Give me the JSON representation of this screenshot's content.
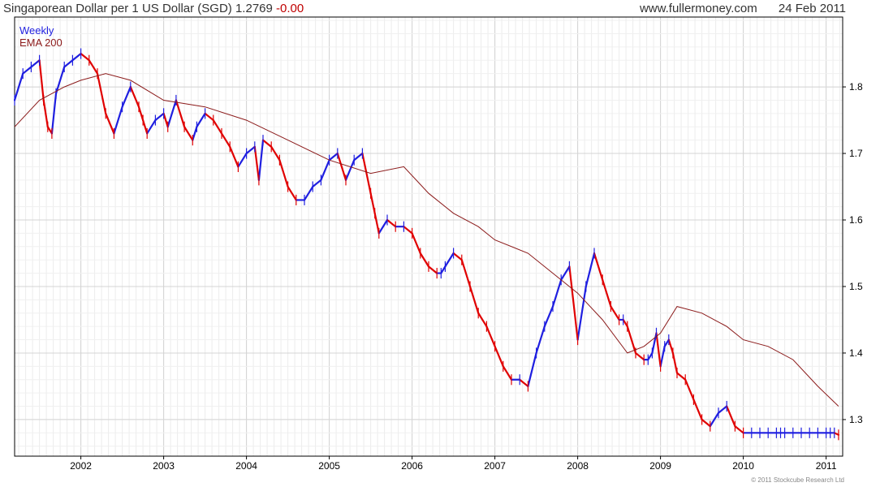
{
  "header": {
    "title": "Singaporean Dollar per 1 US Dollar (SGD)",
    "last": "1.2769",
    "change": "-0.00",
    "site": "www.fullermoney.com",
    "date": "24 Feb 2011"
  },
  "footer": {
    "copyright": "© 2011 Stockcube Research Ltd"
  },
  "colors": {
    "up": "#1f1fe0",
    "down": "#e00000",
    "ema": "#8b1a1a",
    "grid": "#d4d4d4",
    "axis": "#000000"
  },
  "chart_data": {
    "type": "line",
    "title": "Singaporean Dollar per 1 US Dollar (SGD) 1.2769 -0.00",
    "xlabel": "",
    "ylabel": "",
    "xlim": [
      2001.2,
      2011.2
    ],
    "ylim": [
      1.245,
      1.905
    ],
    "x_ticks": [
      "2002",
      "2003",
      "2004",
      "2005",
      "2006",
      "2007",
      "2008",
      "2009",
      "2010",
      "2011"
    ],
    "y_ticks": [
      1.3,
      1.4,
      1.5,
      1.6,
      1.7,
      1.8
    ],
    "grid": true,
    "legend": {
      "placement": "top-left",
      "entries": [
        "Weekly",
        "EMA 200"
      ]
    },
    "series": [
      {
        "name": "Weekly",
        "style": "bars",
        "x": [
          2001.2,
          2001.3,
          2001.4,
          2001.5,
          2001.55,
          2001.6,
          2001.65,
          2001.7,
          2001.8,
          2001.9,
          2002.0,
          2002.1,
          2002.2,
          2002.3,
          2002.4,
          2002.5,
          2002.6,
          2002.7,
          2002.75,
          2002.8,
          2002.9,
          2003.0,
          2003.05,
          2003.15,
          2003.25,
          2003.35,
          2003.4,
          2003.5,
          2003.6,
          2003.7,
          2003.8,
          2003.9,
          2004.0,
          2004.1,
          2004.15,
          2004.2,
          2004.3,
          2004.4,
          2004.5,
          2004.6,
          2004.7,
          2004.8,
          2004.9,
          2005.0,
          2005.1,
          2005.2,
          2005.3,
          2005.4,
          2005.5,
          2005.55,
          2005.6,
          2005.7,
          2005.8,
          2005.9,
          2006.0,
          2006.1,
          2006.2,
          2006.3,
          2006.35,
          2006.4,
          2006.5,
          2006.6,
          2006.7,
          2006.8,
          2006.9,
          2007.0,
          2007.1,
          2007.2,
          2007.3,
          2007.4,
          2007.5,
          2007.6,
          2007.7,
          2007.8,
          2007.9,
          2008.0,
          2008.1,
          2008.2,
          2008.3,
          2008.4,
          2008.5,
          2008.55,
          2008.6,
          2008.7,
          2008.8,
          2008.85,
          2008.9,
          2008.95,
          2009.0,
          2009.05,
          2009.1,
          2009.15,
          2009.2,
          2009.3,
          2009.4,
          2009.5,
          2009.6,
          2009.7,
          2009.8,
          2009.9,
          2010.0,
          2010.1,
          2010.2,
          2010.3,
          2010.4,
          2010.45,
          2010.5,
          2010.6,
          2010.7,
          2010.8,
          2010.9,
          2011.0,
          2011.05,
          2011.1,
          2011.15
        ],
        "values": [
          1.78,
          1.82,
          1.83,
          1.84,
          1.78,
          1.74,
          1.73,
          1.79,
          1.83,
          1.84,
          1.85,
          1.84,
          1.82,
          1.76,
          1.73,
          1.77,
          1.8,
          1.77,
          1.75,
          1.73,
          1.75,
          1.76,
          1.74,
          1.78,
          1.74,
          1.72,
          1.74,
          1.76,
          1.75,
          1.73,
          1.71,
          1.68,
          1.7,
          1.71,
          1.66,
          1.72,
          1.71,
          1.69,
          1.65,
          1.63,
          1.63,
          1.65,
          1.66,
          1.69,
          1.7,
          1.66,
          1.69,
          1.7,
          1.64,
          1.61,
          1.58,
          1.6,
          1.59,
          1.59,
          1.58,
          1.55,
          1.53,
          1.52,
          1.52,
          1.53,
          1.55,
          1.54,
          1.5,
          1.46,
          1.44,
          1.41,
          1.38,
          1.36,
          1.36,
          1.35,
          1.4,
          1.44,
          1.47,
          1.51,
          1.53,
          1.42,
          1.5,
          1.55,
          1.51,
          1.47,
          1.45,
          1.45,
          1.44,
          1.4,
          1.39,
          1.39,
          1.4,
          1.43,
          1.38,
          1.41,
          1.42,
          1.4,
          1.37,
          1.36,
          1.33,
          1.3,
          1.29,
          1.31,
          1.32,
          1.29,
          1.28,
          1.28,
          1.28,
          1.28,
          1.28,
          1.28,
          1.28,
          1.28,
          1.28,
          1.28,
          1.28,
          1.28,
          1.28,
          1.28,
          1.277
        ]
      },
      {
        "name": "EMA 200",
        "style": "line",
        "x": [
          2001.2,
          2001.5,
          2001.8,
          2002.0,
          2002.3,
          2002.6,
          2003.0,
          2003.5,
          2004.0,
          2004.5,
          2005.0,
          2005.5,
          2005.9,
          2006.2,
          2006.5,
          2006.8,
          2007.0,
          2007.4,
          2007.7,
          2008.0,
          2008.3,
          2008.6,
          2008.8,
          2009.0,
          2009.2,
          2009.5,
          2009.8,
          2010.0,
          2010.3,
          2010.6,
          2010.9,
          2011.15
        ],
        "values": [
          1.74,
          1.78,
          1.8,
          1.81,
          1.82,
          1.81,
          1.78,
          1.77,
          1.75,
          1.72,
          1.69,
          1.67,
          1.68,
          1.64,
          1.61,
          1.59,
          1.57,
          1.55,
          1.52,
          1.49,
          1.45,
          1.4,
          1.41,
          1.43,
          1.47,
          1.46,
          1.44,
          1.42,
          1.41,
          1.39,
          1.35,
          1.32
        ]
      }
    ]
  }
}
